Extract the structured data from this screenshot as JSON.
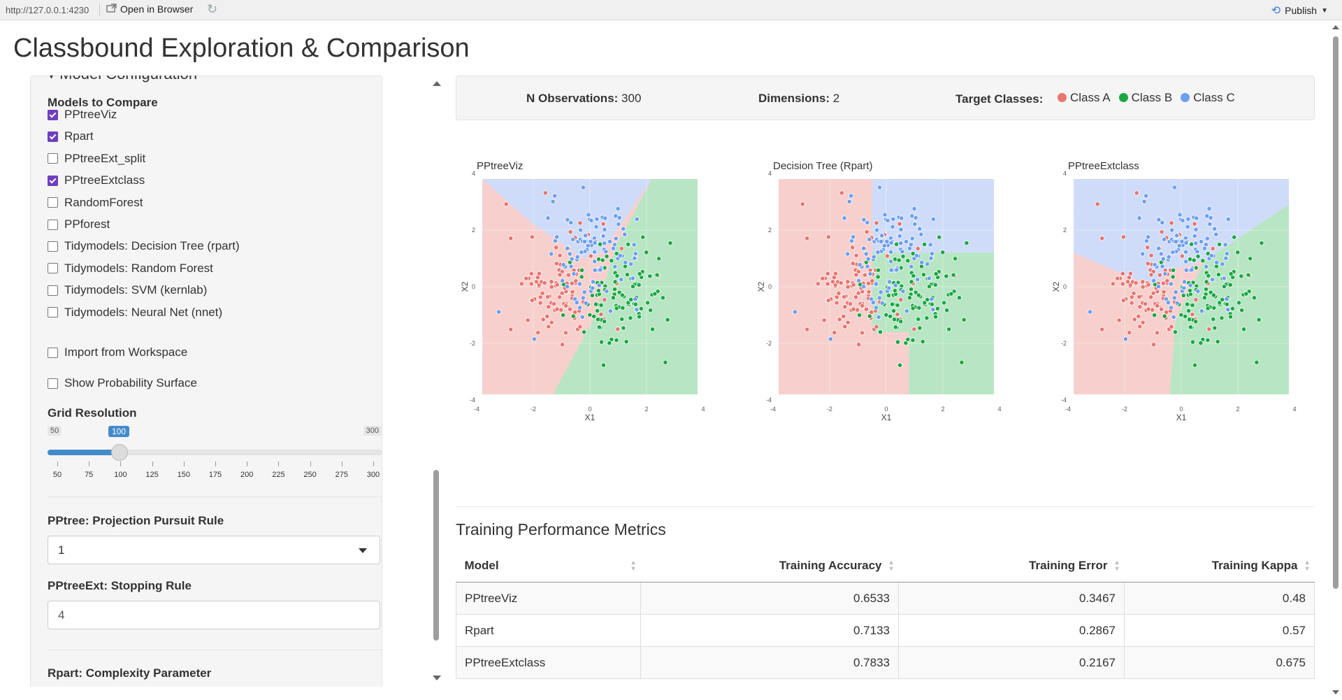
{
  "browser": {
    "url": "http://127.0.0.1:4230",
    "open_in_browser": "Open in Browser",
    "publish": "Publish"
  },
  "page_title": "Classbound Exploration & Comparison",
  "sidebar": {
    "section_heading": "Model Configuration",
    "models_label": "Models to Compare",
    "models": [
      {
        "label": "PPtreeViz",
        "checked": true
      },
      {
        "label": "Rpart",
        "checked": true
      },
      {
        "label": "PPtreeExt_split",
        "checked": false
      },
      {
        "label": "PPtreeExtclass",
        "checked": true
      },
      {
        "label": "RandomForest",
        "checked": false
      },
      {
        "label": "PPforest",
        "checked": false
      },
      {
        "label": "Tidymodels: Decision Tree (rpart)",
        "checked": false
      },
      {
        "label": "Tidymodels: Random Forest",
        "checked": false
      },
      {
        "label": "Tidymodels: SVM (kernlab)",
        "checked": false
      },
      {
        "label": "Tidymodels: Neural Net (nnet)",
        "checked": false
      }
    ],
    "import_workspace": "Import from Workspace",
    "show_probability": "Show Probability Surface",
    "grid_resolution": {
      "label": "Grid Resolution",
      "min": "50",
      "max": "300",
      "value": "100",
      "value_num": 100,
      "ticks": [
        "50",
        "75",
        "100",
        "125",
        "150",
        "175",
        "200",
        "225",
        "250",
        "275",
        "300"
      ]
    },
    "pp_rule": {
      "label": "PPtree: Projection Pursuit Rule",
      "value": "1"
    },
    "stopping_rule": {
      "label": "PPtreeExt: Stopping Rule",
      "value": "4"
    },
    "complexity": {
      "label": "Rpart: Complexity Parameter"
    }
  },
  "info": {
    "n_obs_label": "N Observations:",
    "n_obs_value": "300",
    "dims_label": "Dimensions:",
    "dims_value": "2",
    "classes_label": "Target Classes:",
    "classes": [
      {
        "name": "Class A",
        "color": "#e8756f"
      },
      {
        "name": "Class B",
        "color": "#1aa843"
      },
      {
        "name": "Class C",
        "color": "#6c9ff0"
      }
    ]
  },
  "plots": [
    {
      "title": "PPtreeViz",
      "xlabel": "X1",
      "ylabel": "X2"
    },
    {
      "title": "Decision Tree (Rpart)",
      "xlabel": "X1",
      "ylabel": "X2"
    },
    {
      "title": "PPtreeExtclass",
      "xlabel": "X1",
      "ylabel": "X2"
    }
  ],
  "axis_ticks": [
    "-4",
    "-2",
    "0",
    "2",
    "4"
  ],
  "metrics": {
    "title": "Training Performance Metrics",
    "headers": [
      "Model",
      "Training Accuracy",
      "Training Error",
      "Training Kappa"
    ],
    "rows": [
      [
        "PPtreeViz",
        "0.6533",
        "0.3467",
        "0.48"
      ],
      [
        "Rpart",
        "0.7133",
        "0.2867",
        "0.57"
      ],
      [
        "PPtreeExtclass",
        "0.7833",
        "0.2167",
        "0.675"
      ]
    ]
  }
}
